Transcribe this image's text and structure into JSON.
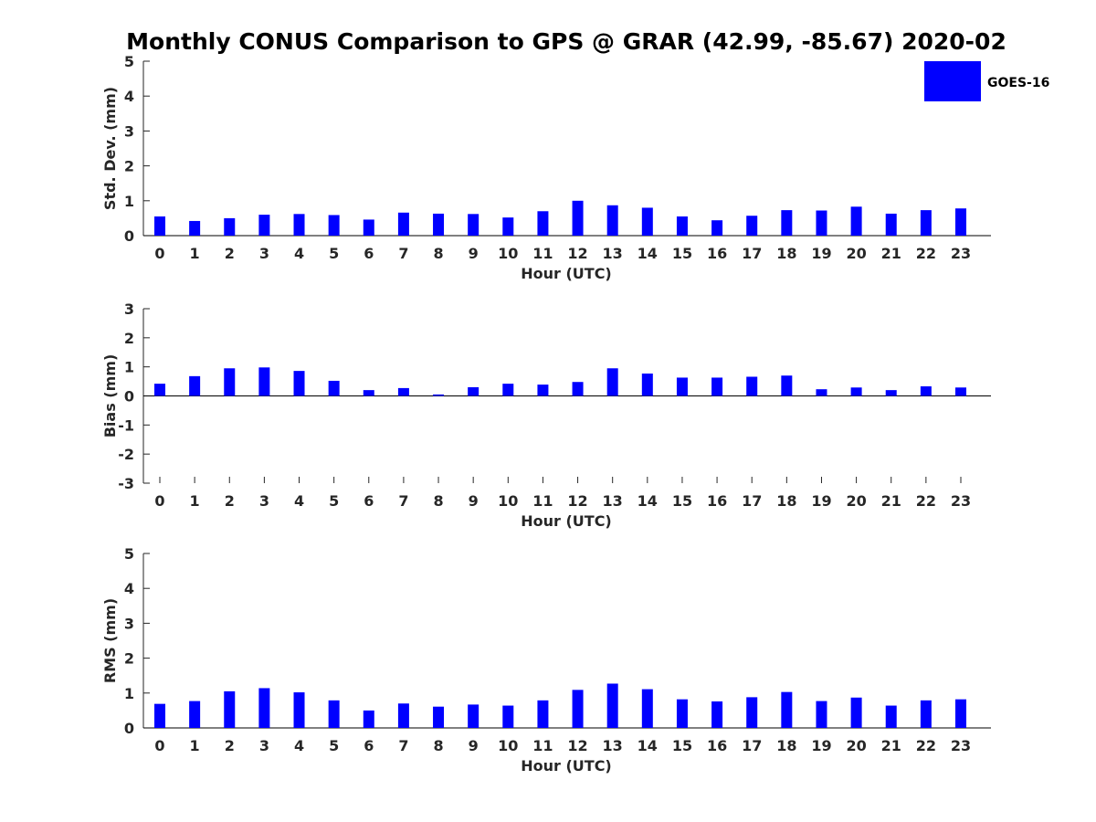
{
  "chart_data": {
    "title": "Monthly CONUS Comparison to GPS @ GRAR (42.99, -85.67) 2020-02",
    "legend": {
      "label": "GOES-16",
      "color": "#0000ff",
      "position": "top-right"
    },
    "panels": [
      {
        "type": "bar",
        "ylabel": "Std. Dev. (mm)",
        "xlabel": "Hour (UTC)",
        "ylim": [
          0,
          5
        ],
        "yticks": [
          0,
          1,
          2,
          3,
          4,
          5
        ],
        "categories": [
          0,
          1,
          2,
          3,
          4,
          5,
          6,
          7,
          8,
          9,
          10,
          11,
          12,
          13,
          14,
          15,
          16,
          17,
          18,
          19,
          20,
          21,
          22,
          23
        ],
        "values": [
          0.55,
          0.42,
          0.5,
          0.6,
          0.62,
          0.59,
          0.46,
          0.66,
          0.63,
          0.62,
          0.52,
          0.7,
          1.0,
          0.87,
          0.8,
          0.55,
          0.44,
          0.57,
          0.73,
          0.72,
          0.83,
          0.63,
          0.73,
          0.78
        ]
      },
      {
        "type": "bar",
        "ylabel": "Bias (mm)",
        "xlabel": "Hour (UTC)",
        "ylim": [
          -3,
          3
        ],
        "yticks": [
          -3,
          -2,
          -1,
          0,
          1,
          2,
          3
        ],
        "categories": [
          0,
          1,
          2,
          3,
          4,
          5,
          6,
          7,
          8,
          9,
          10,
          11,
          12,
          13,
          14,
          15,
          16,
          17,
          18,
          19,
          20,
          21,
          22,
          23
        ],
        "values": [
          0.42,
          0.68,
          0.95,
          0.98,
          0.86,
          0.52,
          0.2,
          0.27,
          0.05,
          0.3,
          0.42,
          0.39,
          0.48,
          0.95,
          0.77,
          0.63,
          0.63,
          0.66,
          0.7,
          0.23,
          0.29,
          0.2,
          0.33,
          0.29
        ]
      },
      {
        "type": "bar",
        "ylabel": "RMS (mm)",
        "xlabel": "Hour (UTC)",
        "ylim": [
          0,
          5
        ],
        "yticks": [
          0,
          1,
          2,
          3,
          4,
          5
        ],
        "categories": [
          0,
          1,
          2,
          3,
          4,
          5,
          6,
          7,
          8,
          9,
          10,
          11,
          12,
          13,
          14,
          15,
          16,
          17,
          18,
          19,
          20,
          21,
          22,
          23
        ],
        "values": [
          0.69,
          0.77,
          1.05,
          1.14,
          1.02,
          0.79,
          0.5,
          0.7,
          0.61,
          0.67,
          0.64,
          0.79,
          1.09,
          1.27,
          1.11,
          0.82,
          0.76,
          0.88,
          1.03,
          0.77,
          0.87,
          0.64,
          0.79,
          0.82
        ]
      }
    ]
  }
}
